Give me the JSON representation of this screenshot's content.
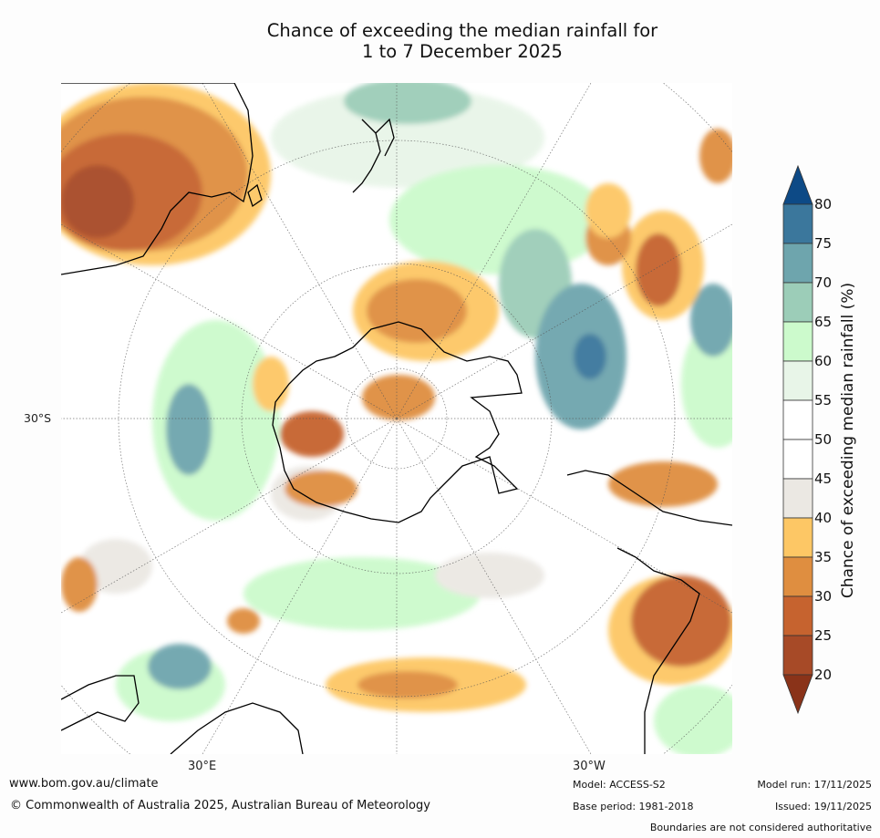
{
  "title": {
    "line1": "Chance of exceeding the median rainfall for",
    "line2": "1 to 7 December 2025"
  },
  "map": {
    "projection": "south polar stereographic",
    "lat_label": "30°S",
    "lon_labels": {
      "left": "30°E",
      "right": "30°W"
    }
  },
  "legend": {
    "title": "Chance of exceeding median rainfall (%)",
    "ticks": [
      "80",
      "75",
      "70",
      "65",
      "60",
      "55",
      "50",
      "45",
      "40",
      "35",
      "30",
      "25",
      "20"
    ],
    "colors": {
      "above_80": "#0d4a86",
      "75_80": "#3b779c",
      "70_75": "#6ea5ad",
      "65_70": "#9ccdb8",
      "60_65": "#ccfacc",
      "55_60": "#e8f5e8",
      "50_55": "#ffffff",
      "45_50": "#ffffff",
      "40_45": "#ebe8e3",
      "35_40": "#fdc765",
      "30_35": "#df8e40",
      "25_30": "#c6632f",
      "20_25": "#a74a27",
      "below_20": "#8a3319"
    }
  },
  "footer": {
    "website": "www.bom.gov.au/climate",
    "copyright": "© Commonwealth of Australia 2025, Australian Bureau of Meteorology",
    "model": "Model: ACCESS-S2",
    "base_period": "Base period: 1981-2018",
    "model_run": "Model run: 17/11/2025",
    "issued": "Issued: 19/11/2025",
    "disclaimer": "Boundaries are not considered authoritative"
  }
}
